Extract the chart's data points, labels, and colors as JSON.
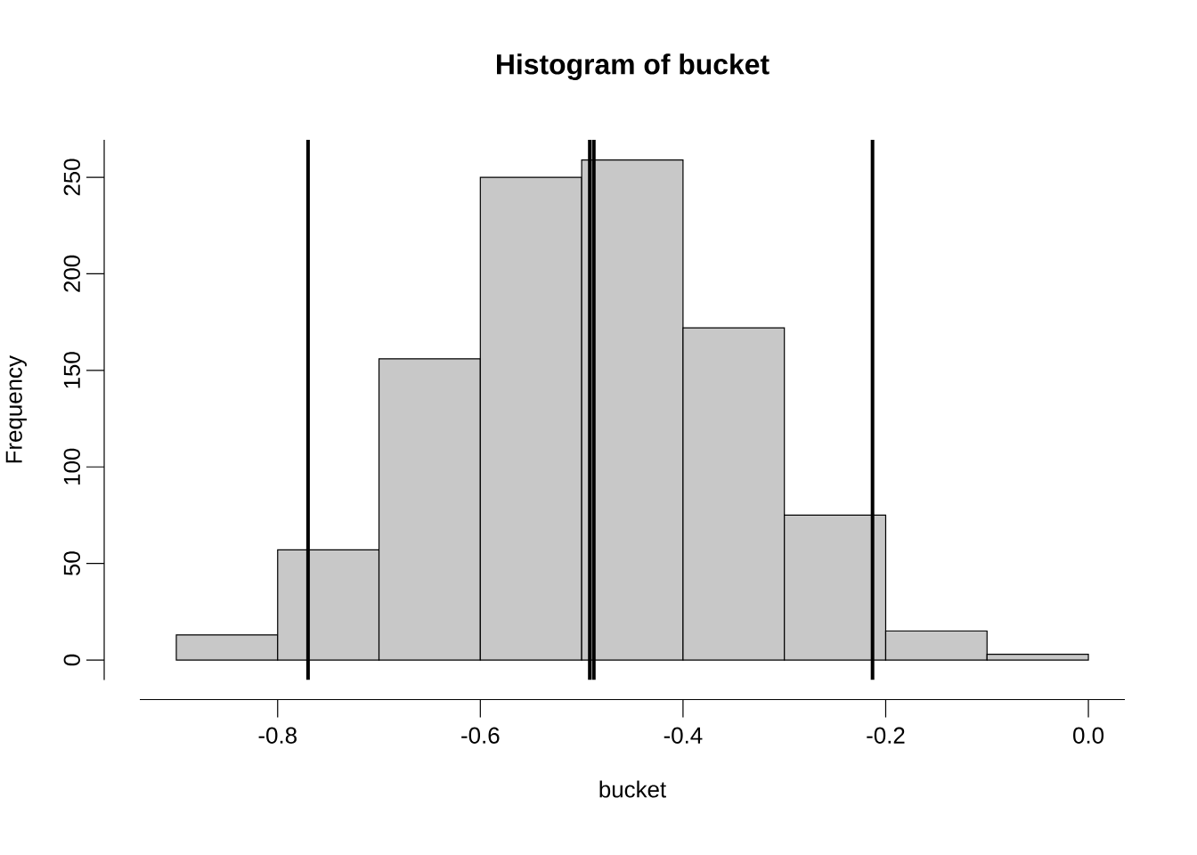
{
  "chart_data": {
    "type": "histogram",
    "title": "Histogram of bucket",
    "xlabel": "bucket",
    "ylabel": "Frequency",
    "bins": [
      -0.9,
      -0.8,
      -0.7,
      -0.6,
      -0.5,
      -0.4,
      -0.3,
      -0.2,
      -0.1,
      0.0
    ],
    "values": [
      13,
      57,
      156,
      250,
      259,
      172,
      75,
      15,
      3
    ],
    "color": "#c8c8c8",
    "xlim": [
      -0.936,
      0.036
    ],
    "ylim": [
      -10.36,
      269.4
    ],
    "xticks": [
      {
        "value": -0.8,
        "label": "-0.8"
      },
      {
        "value": -0.6,
        "label": "-0.6"
      },
      {
        "value": -0.4,
        "label": "-0.4"
      },
      {
        "value": -0.2,
        "label": "-0.2"
      },
      {
        "value": 0.0,
        "label": "0.0"
      }
    ],
    "yticks": [
      0,
      50,
      100,
      150,
      200,
      250
    ],
    "ref_lines": [
      {
        "axis": "x",
        "value": -0.77,
        "color": "#000000"
      },
      {
        "axis": "x",
        "value": -0.492,
        "color": "#000000"
      },
      {
        "axis": "x",
        "value": -0.488,
        "color": "#000000"
      },
      {
        "axis": "x",
        "value": -0.213,
        "color": "#000000"
      }
    ],
    "grid": false
  }
}
